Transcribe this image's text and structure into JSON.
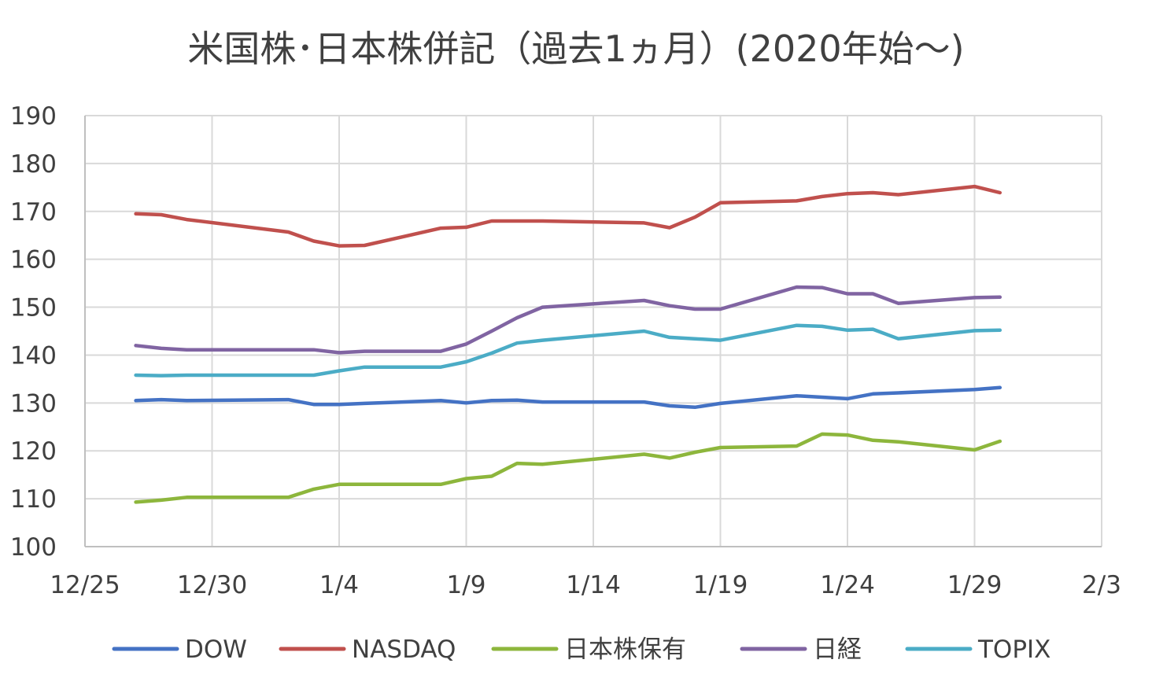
{
  "chart_data": {
    "type": "line",
    "title": "米国株･日本株併記（過去1ヵ月）(2020年始～)",
    "xlabel": "",
    "ylabel": "",
    "ylim": [
      100,
      190
    ],
    "yticks": [
      "100",
      "110",
      "120",
      "130",
      "140",
      "150",
      "160",
      "170",
      "180",
      "190"
    ],
    "xlim": [
      0,
      40
    ],
    "xticks": [
      {
        "x": 0,
        "label": "12/25"
      },
      {
        "x": 5,
        "label": "12/30"
      },
      {
        "x": 10,
        "label": "1/4"
      },
      {
        "x": 15,
        "label": "1/9"
      },
      {
        "x": 20,
        "label": "1/14"
      },
      {
        "x": 25,
        "label": "1/19"
      },
      {
        "x": 30,
        "label": "1/24"
      },
      {
        "x": 35,
        "label": "1/29"
      },
      {
        "x": 40,
        "label": "2/3"
      }
    ],
    "x": [
      2,
      3,
      4,
      8,
      9,
      10,
      11,
      14,
      15,
      16,
      17,
      18,
      22,
      23,
      24,
      25,
      28,
      29,
      30,
      31,
      32,
      35,
      36
    ],
    "series": [
      {
        "name": "DOW",
        "color": "#4472c4",
        "values": [
          130.5,
          130.7,
          130.5,
          130.7,
          129.7,
          129.7,
          129.9,
          130.5,
          130.0,
          130.5,
          130.6,
          130.2,
          130.2,
          129.4,
          129.1,
          129.9,
          131.5,
          131.2,
          130.9,
          131.9,
          132.1,
          132.8,
          133.2
        ]
      },
      {
        "name": "NASDAQ",
        "color": "#c0504d",
        "values": [
          169.5,
          169.3,
          168.3,
          165.7,
          163.8,
          162.8,
          162.9,
          166.5,
          166.7,
          168.0,
          168.0,
          168.0,
          167.6,
          166.6,
          168.8,
          171.8,
          172.2,
          173.1,
          173.7,
          173.9,
          173.5,
          175.2,
          173.9
        ]
      },
      {
        "name": "日本株保有",
        "color": "#8db63c",
        "values": [
          109.3,
          109.7,
          110.3,
          110.3,
          112.0,
          113.0,
          113.0,
          113.0,
          114.2,
          114.7,
          117.4,
          117.2,
          119.3,
          118.5,
          119.7,
          120.7,
          121.0,
          123.5,
          123.3,
          122.2,
          121.9,
          120.2,
          122.0
        ]
      },
      {
        "name": "日経",
        "color": "#8064a2",
        "values": [
          142.0,
          141.4,
          141.1,
          141.1,
          141.1,
          140.5,
          140.8,
          140.8,
          142.3,
          145.0,
          147.8,
          150.0,
          151.4,
          150.3,
          149.6,
          149.6,
          154.2,
          154.1,
          152.8,
          152.8,
          150.8,
          152.0,
          152.1
        ]
      },
      {
        "name": "TOPIX",
        "color": "#4bacc6",
        "values": [
          135.8,
          135.7,
          135.8,
          135.8,
          135.8,
          136.7,
          137.5,
          137.5,
          138.6,
          140.4,
          142.5,
          143.1,
          145.0,
          143.7,
          143.4,
          143.1,
          146.2,
          146.0,
          145.2,
          145.4,
          143.4,
          145.1,
          145.2
        ]
      }
    ],
    "legend_position": "bottom",
    "grid": true
  }
}
